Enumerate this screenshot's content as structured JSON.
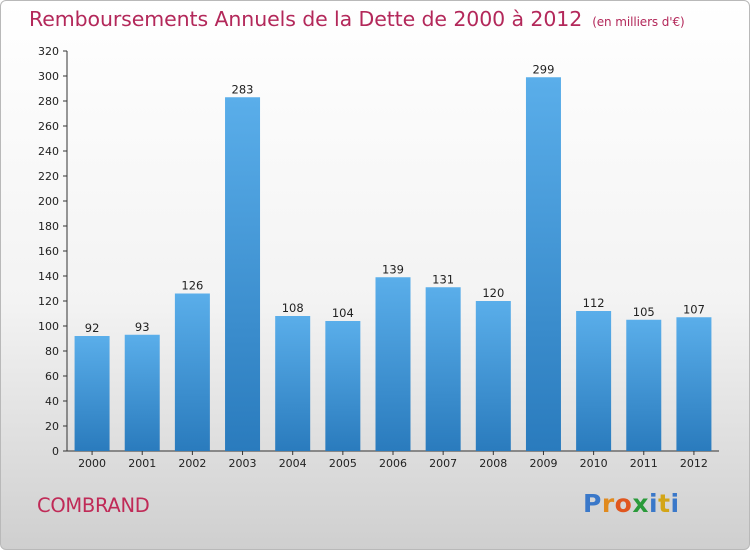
{
  "title": "Remboursements Annuels de la Dette de 2000 à 2012",
  "unit_note": "(en milliers d'€)",
  "town": "COMBRAND",
  "logo": {
    "letters": [
      "P",
      "r",
      "o",
      "x",
      "i",
      "t",
      "i"
    ],
    "colors": [
      "#3a78c9",
      "#e08a1e",
      "#e0561e",
      "#2a9a3a",
      "#3a78c9",
      "#d3a517",
      "#3a78c9"
    ]
  },
  "colors": {
    "title": "#b3285a",
    "bar_top": "#5aaeea",
    "bar_bottom": "#2a7bbd"
  },
  "chart_data": {
    "type": "bar",
    "categories": [
      "2000",
      "2001",
      "2002",
      "2003",
      "2004",
      "2005",
      "2006",
      "2007",
      "2008",
      "2009",
      "2010",
      "2011",
      "2012"
    ],
    "values": [
      92,
      93,
      126,
      283,
      108,
      104,
      139,
      131,
      120,
      299,
      112,
      105,
      107
    ],
    "title": "Remboursements Annuels de la Dette de 2000 à 2012",
    "xlabel": "",
    "ylabel": "",
    "ylim": [
      0,
      320
    ],
    "yticks": [
      0,
      20,
      40,
      60,
      80,
      100,
      120,
      140,
      160,
      180,
      200,
      220,
      240,
      260,
      280,
      300,
      320
    ],
    "grid": false
  }
}
